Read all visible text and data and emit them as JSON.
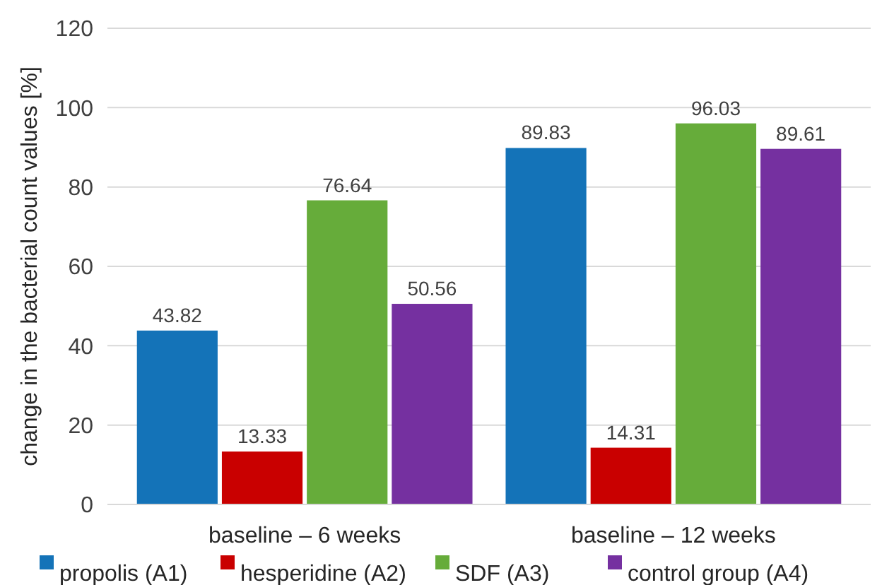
{
  "chart_data": {
    "type": "bar",
    "ylabel": "change in the bacterial count values [%]",
    "categories": [
      "baseline – 6 weeks",
      "baseline – 12 weeks"
    ],
    "series": [
      {
        "name": "propolis (A1)",
        "color": "#1473b8",
        "values": [
          43.82,
          89.83
        ]
      },
      {
        "name": "hesperidine (A2)",
        "color": "#c90000",
        "values": [
          13.33,
          14.31
        ]
      },
      {
        "name": "SDF (A3)",
        "color": "#66ac3a",
        "values": [
          76.64,
          96.03
        ]
      },
      {
        "name": "control group (A4)",
        "color": "#7530a0",
        "values": [
          50.56,
          89.61
        ]
      }
    ],
    "ylim": [
      0,
      120
    ],
    "yticks": [
      0,
      20,
      40,
      60,
      80,
      100,
      120
    ],
    "grid": "y",
    "legend": "bottom",
    "data_labels": true
  }
}
